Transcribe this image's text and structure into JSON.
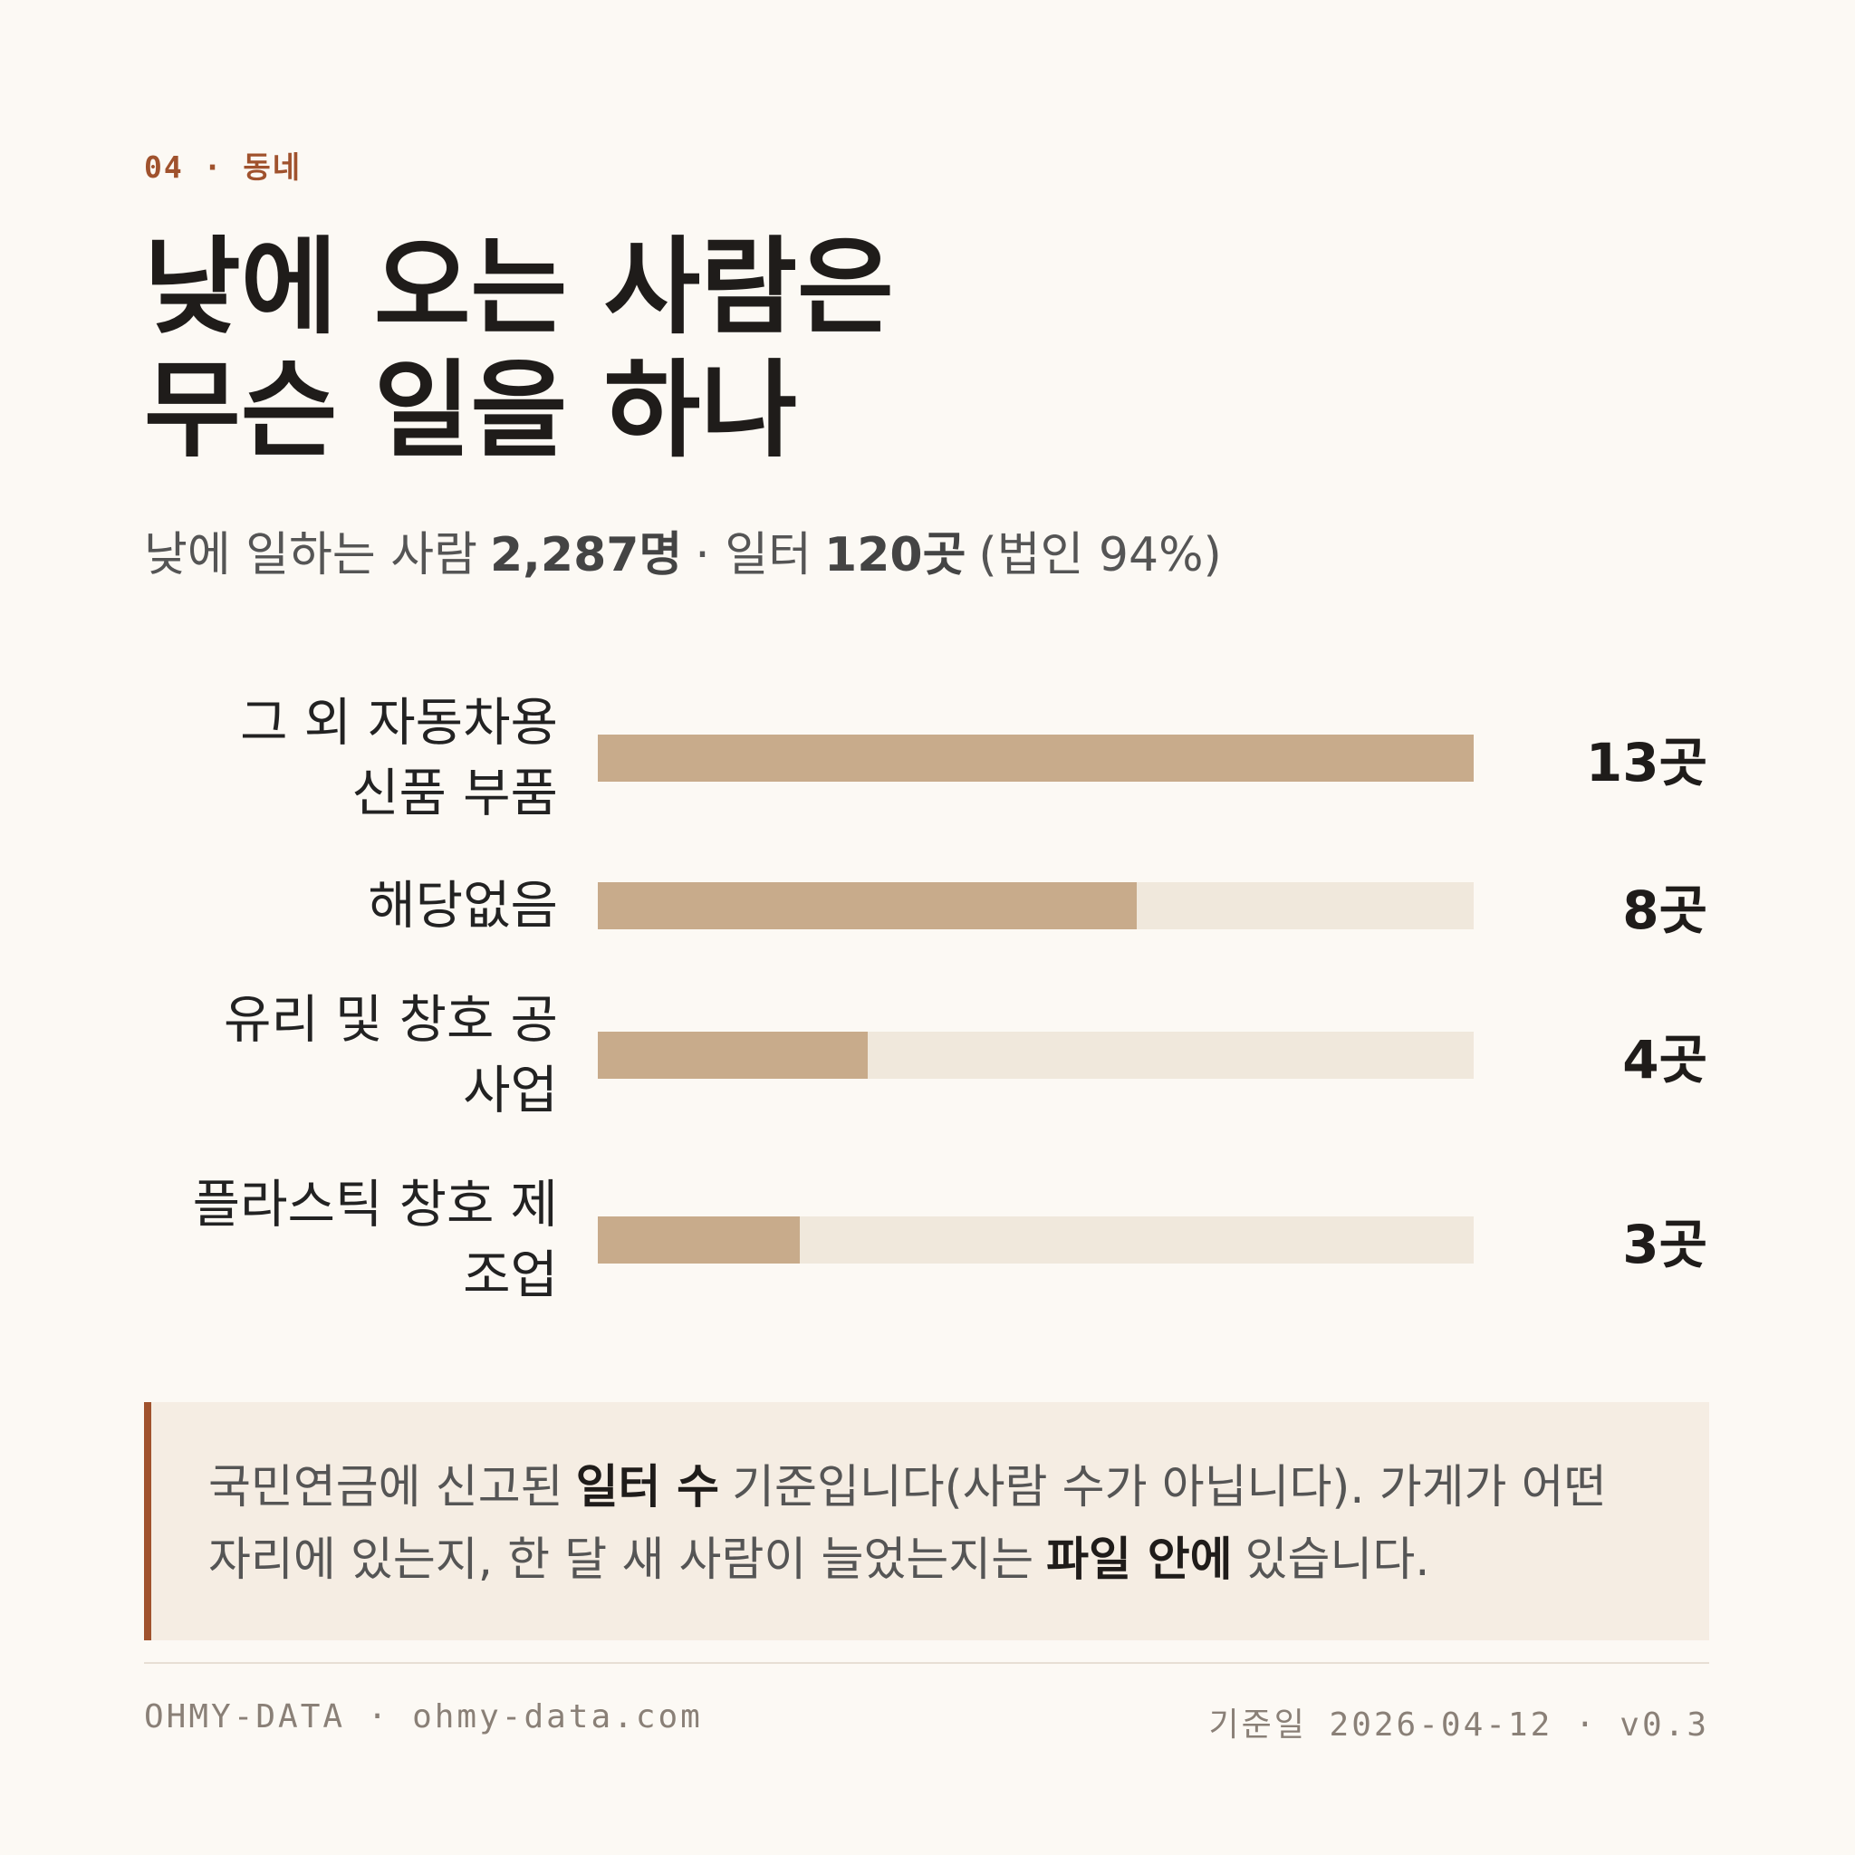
{
  "kicker": "04 · 동네",
  "chart_data": {
    "type": "hbar",
    "title": [
      "낮에 오는 사람은",
      "무슨 일을 하나"
    ],
    "subtitle": [
      {
        "text": "낮에 일하는 사람",
        "bold": false
      },
      {
        "text": "2,287명",
        "bold": true
      },
      {
        "text": "· 일터",
        "bold": false
      },
      {
        "text": "120곳",
        "bold": true
      },
      {
        "text": "(법인 94%)",
        "bold": false
      }
    ],
    "categories": [
      "그 외 자동차용 신품 부품",
      "해당없음",
      "유리 및 창호 공사업",
      "플라스틱 창호 제조업"
    ],
    "values": [
      13,
      8,
      4,
      3
    ],
    "value_labels": [
      "13곳",
      "8곳",
      "4곳",
      "3곳"
    ],
    "xlim": [
      0,
      13
    ],
    "color": "#c8ab8b",
    "track_color": "#f0e8dc"
  },
  "note": [
    {
      "text": "국민연금에 신고된",
      "bold": false
    },
    {
      "text": "일터 수",
      "bold": true
    },
    {
      "text": "기준입니다(사람 수가 아닙니다). 가게가 어떤 자리에 있는지, 한 달 새 사람이 늘었는지는",
      "bold": false
    },
    {
      "text": "파일 안에",
      "bold": true
    },
    {
      "text": "있습니다.",
      "bold": false
    }
  ],
  "footer": {
    "left": "OHMY-DATA · ohmy-data.com",
    "right_label": "기준일",
    "right": "2026-04-12 · v0.3"
  }
}
